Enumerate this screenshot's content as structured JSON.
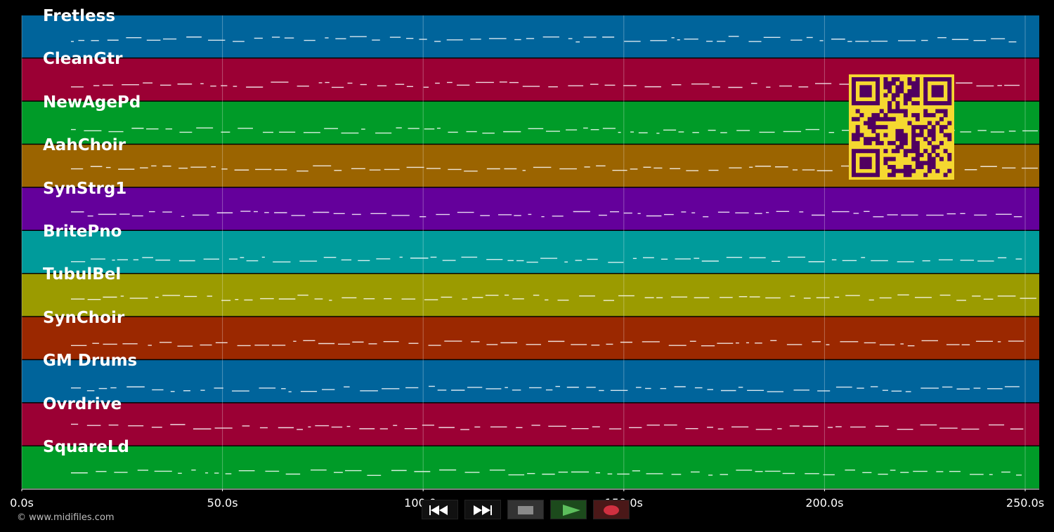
{
  "tracks": [
    {
      "name": "Fretless",
      "color": "#00649b"
    },
    {
      "name": "CleanGtr",
      "color": "#9b0034"
    },
    {
      "name": "NewAgePd",
      "color": "#009b28"
    },
    {
      "name": "AahChoir",
      "color": "#9b6400"
    },
    {
      "name": "SynStrg1",
      "color": "#64009b"
    },
    {
      "name": "BritePno",
      "color": "#009b9b"
    },
    {
      "name": "TubulBel",
      "color": "#9b9b00"
    },
    {
      "name": "SynChoir",
      "color": "#9b2800"
    },
    {
      "name": "GM Drums",
      "color": "#00649b"
    },
    {
      "name": "Ovrdrive",
      "color": "#9b0034"
    },
    {
      "name": "SquareLd",
      "color": "#009b28"
    }
  ],
  "timeline": {
    "unit": "s",
    "max_seconds": 253.5,
    "ticks": [
      "0.0s",
      "50.0s",
      "100.0s",
      "150.0s",
      "200.0s",
      "250.0s"
    ],
    "tick_values": [
      0,
      50,
      100,
      150,
      200,
      250
    ]
  },
  "copyright": "© www.midifiles.com",
  "qr_code": {
    "label": "qr-code",
    "foreground": "#500060",
    "background": "#f5d830"
  },
  "transport": {
    "buttons": [
      {
        "name": "rewind-button",
        "icon": "rewind-icon",
        "bg": "#111111",
        "fg": "#ffffff"
      },
      {
        "name": "fast-forward-button",
        "icon": "fast-forward-icon",
        "bg": "#111111",
        "fg": "#ffffff"
      },
      {
        "name": "stop-button",
        "icon": "stop-icon",
        "bg": "#333333",
        "fg": "#8a8a8a"
      },
      {
        "name": "play-button",
        "icon": "play-icon",
        "bg": "#1c4a1c",
        "fg": "#5cbf5c"
      },
      {
        "name": "record-button",
        "icon": "record-icon",
        "bg": "#4a1818",
        "fg": "#d03040"
      }
    ]
  },
  "accent_colors": {
    "background": "#000000",
    "gridline": "#ffffff",
    "note": "#ffffff"
  }
}
